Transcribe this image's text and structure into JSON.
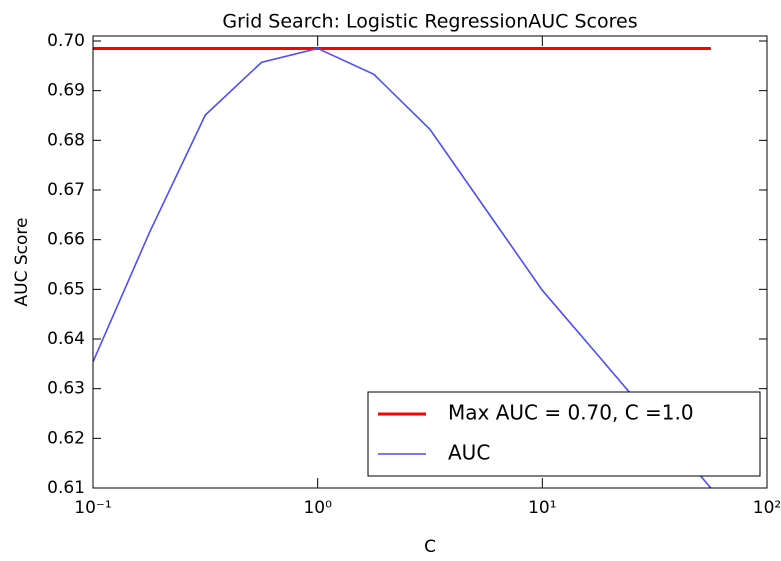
{
  "chart_data": {
    "type": "line",
    "title": "Grid Search: Logistic RegressionAUC Scores",
    "xlabel": "C",
    "ylabel": "AUC Score",
    "x": [
      0.1,
      0.1778,
      0.3162,
      0.5623,
      1.0,
      1.7783,
      3.1623,
      5.6234,
      10.0,
      17.7828,
      31.6228,
      56.2341
    ],
    "series": [
      {
        "name": "Max AUC = 0.70, C =1.0",
        "color": "#ff0000",
        "values": [
          0.6985,
          0.6985,
          0.6985,
          0.6985,
          0.6985,
          0.6985,
          0.6985,
          0.6985,
          0.6985,
          0.6985,
          0.6985,
          0.6985
        ]
      },
      {
        "name": "AUC",
        "color": "#4d4dff",
        "values": [
          0.6354,
          0.6613,
          0.6851,
          0.6957,
          0.6985,
          0.6933,
          0.6822,
          0.666,
          0.6498,
          0.6366,
          0.6233,
          0.61
        ]
      }
    ],
    "xscale": "log",
    "xlim": [
      0.1,
      100
    ],
    "xticks": [
      {
        "value": 0.1,
        "label": "10⁻¹"
      },
      {
        "value": 1,
        "label": "10⁰"
      },
      {
        "value": 10,
        "label": "10¹"
      },
      {
        "value": 100,
        "label": "10²"
      }
    ],
    "ylim": [
      0.61,
      0.7
    ],
    "yticks": [
      0.61,
      0.62,
      0.63,
      0.64,
      0.65,
      0.66,
      0.67,
      0.68,
      0.69,
      {
        "value": 0.7,
        "label": "0.70"
      }
    ],
    "grid": false,
    "legend": "lower right"
  }
}
